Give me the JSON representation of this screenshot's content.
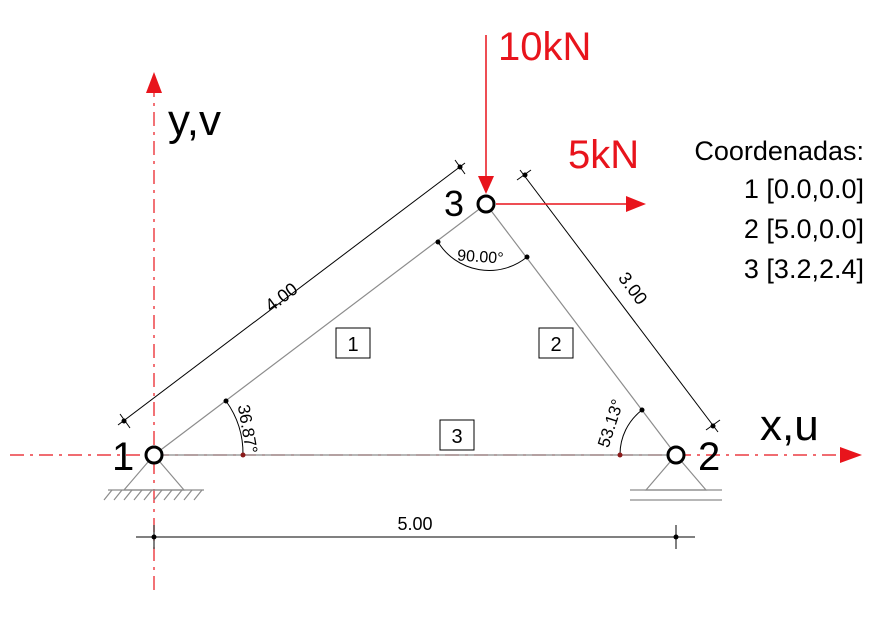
{
  "axes": {
    "y_label": "y,v",
    "x_label": "x,u"
  },
  "loads": {
    "vertical": "10kN",
    "horizontal": "5kN"
  },
  "nodes": {
    "n1": "1",
    "n2": "2",
    "n3": "3"
  },
  "members": {
    "m1": "1",
    "m2": "2",
    "m3": "3"
  },
  "dimensions": {
    "d13": "4.00",
    "d23": "3.00",
    "d12": "5.00"
  },
  "angles": {
    "a1": "36.87°",
    "a2": "53.13°",
    "a3": "90.00°"
  },
  "coordinates": {
    "title": "Coordenadas:",
    "rows": [
      "1 [0.0,0.0]",
      "2 [5.0,0.0]",
      "3 [3.2,2.4]"
    ]
  },
  "colors": {
    "load": "#e8141c",
    "axis": "#e8141c",
    "line": "#000000",
    "member": "#8c8c8c"
  }
}
